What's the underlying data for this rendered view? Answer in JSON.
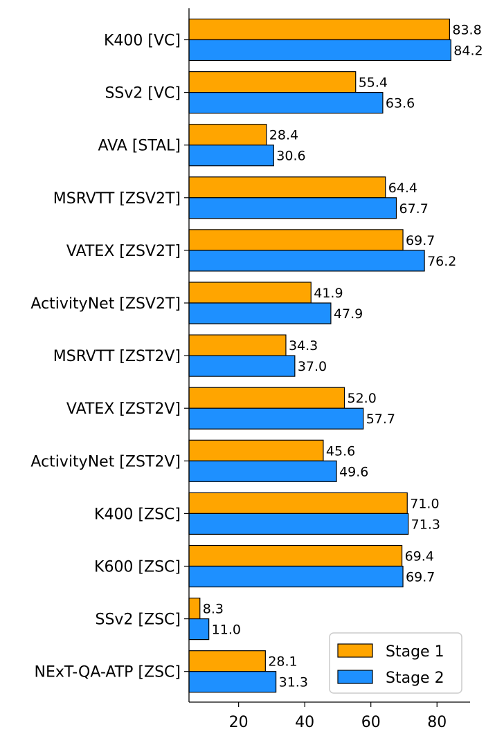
{
  "chart_data": {
    "type": "bar",
    "orientation": "horizontal",
    "categories": [
      "K400 [VC]",
      "SSv2 [VC]",
      "AVA [STAL]",
      "MSRVTT [ZSV2T]",
      "VATEX [ZSV2T]",
      "ActivityNet [ZSV2T]",
      "MSRVTT [ZST2V]",
      "VATEX [ZST2V]",
      "ActivityNet [ZST2V]",
      "K400 [ZSC]",
      "K600 [ZSC]",
      "SSv2 [ZSC]",
      "NExT-QA-ATP [ZSC]"
    ],
    "series": [
      {
        "name": "Stage 1",
        "color": "#FFA500",
        "values": [
          83.8,
          55.4,
          28.4,
          64.4,
          69.7,
          41.9,
          34.3,
          52.0,
          45.6,
          71.0,
          69.4,
          8.3,
          28.1
        ],
        "labels": [
          "83.8",
          "55.4",
          "28.4",
          "64.4",
          "69.7",
          "41.9",
          "34.3",
          "52.0",
          "45.6",
          "71.0",
          "69.4",
          "8.3",
          "28.1"
        ]
      },
      {
        "name": "Stage 2",
        "color": "#1E90FF",
        "values": [
          84.2,
          63.6,
          30.6,
          67.7,
          76.2,
          47.9,
          37.0,
          57.7,
          49.6,
          71.3,
          69.7,
          11.0,
          31.3
        ],
        "labels": [
          "84.2",
          "63.6",
          "30.6",
          "67.7",
          "76.2",
          "47.9",
          "37.0",
          "57.7",
          "49.6",
          "71.3",
          "69.7",
          "11.0",
          "31.3"
        ]
      }
    ],
    "xlim": [
      5,
      90
    ],
    "xticks": [
      20,
      40,
      60,
      80
    ],
    "xtick_labels": [
      "20",
      "40",
      "60",
      "80"
    ],
    "legend_position": "bottom-right",
    "grid": false
  }
}
